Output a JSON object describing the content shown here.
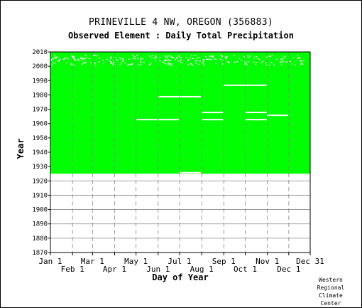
{
  "chart_data": {
    "type": "heatmap",
    "title": "PRINEVILLE 4 NW, OREGON   (356883)",
    "subtitle": "Observed Element : Daily Total Precipitation",
    "xlabel": "Day of Year",
    "ylabel": "Year",
    "x_ticks_upper": [
      "Jan 1",
      "Mar 1",
      "May 1",
      "Jul 1",
      "Sep 1",
      "Nov 1",
      "Dec 31"
    ],
    "x_ticks_lower": [
      "Feb 1",
      "Apr 1",
      "Jun 1",
      "Aug 1",
      "Oct 1",
      "Dec 1"
    ],
    "y_ticks": [
      "1870",
      "1880",
      "1890",
      "1900",
      "1910",
      "1920",
      "1930",
      "1940",
      "1950",
      "1960",
      "1970",
      "1980",
      "1990",
      "2000",
      "2010"
    ],
    "xlim": [
      1,
      365
    ],
    "ylim": [
      1870,
      2010
    ],
    "grid": true,
    "data_color": "#00ff00",
    "coverage_start_year": 1925,
    "coverage_end_year": 2010,
    "gaps": [
      {
        "start": "Jul 1",
        "end": "Jul 31",
        "years": "1925-1926"
      },
      {
        "start": "May 1",
        "end": "May 31",
        "years": "1962-1963"
      },
      {
        "start": "Jun 1",
        "end": "Jun 30",
        "years": "1962-1963"
      },
      {
        "start": "Jun 1",
        "end": "Jul 31",
        "years": "1978-1979"
      },
      {
        "start": "Aug 1",
        "end": "Aug 31",
        "years": "1967-1968"
      },
      {
        "start": "Aug 1",
        "end": "Aug 31",
        "years": "1962-1963"
      },
      {
        "start": "Sep 1",
        "end": "Oct 31",
        "years": "1986-1987"
      },
      {
        "start": "Oct 1",
        "end": "Oct 31",
        "years": "1967-1968"
      },
      {
        "start": "Oct 1",
        "end": "Oct 31",
        "years": "1962-1963"
      },
      {
        "start": "Nov 1",
        "end": "Nov 30",
        "years": "1965-1966"
      }
    ]
  },
  "credit": [
    "Western",
    "Regional",
    "Climate",
    "Center"
  ]
}
